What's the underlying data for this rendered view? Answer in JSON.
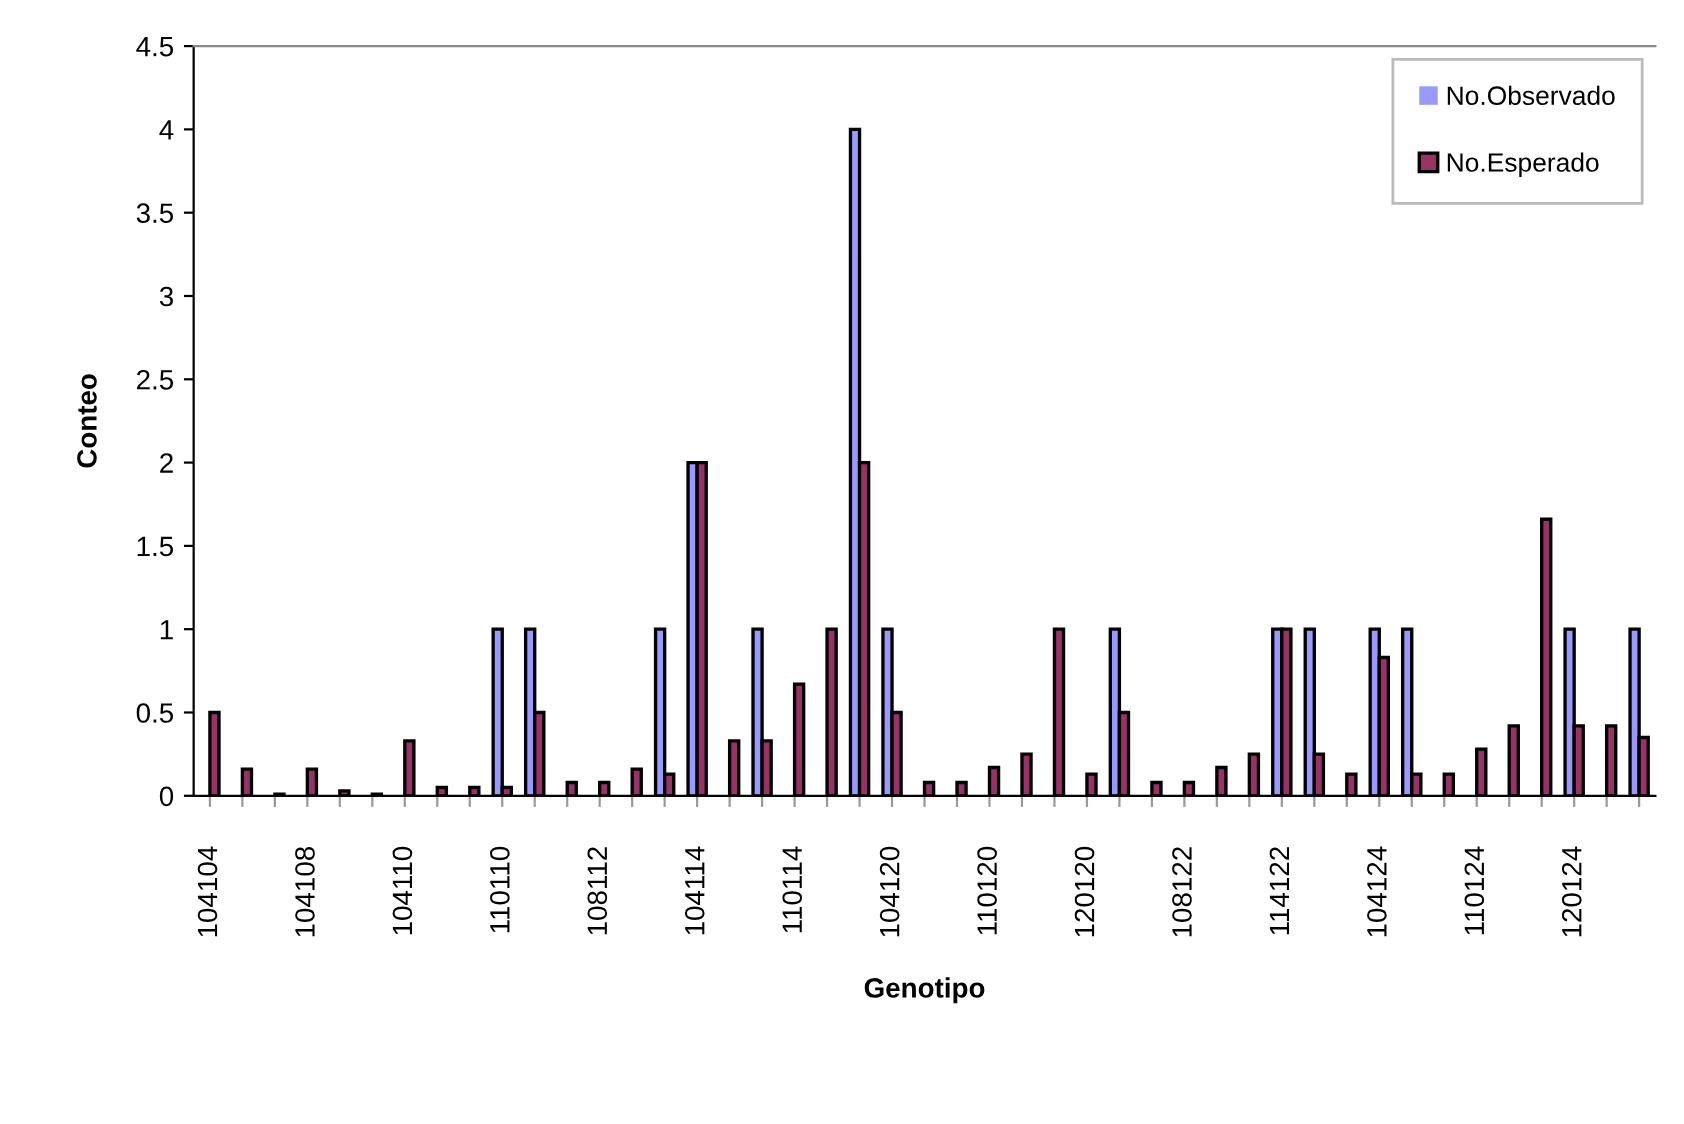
{
  "chart_data": {
    "type": "bar",
    "xlabel": "Genotipo",
    "ylabel": "Conteo",
    "categories": [
      "104104",
      null,
      null,
      "104108",
      null,
      null,
      "104110",
      null,
      null,
      "110110",
      null,
      null,
      "108112",
      null,
      null,
      "104114",
      null,
      null,
      "110114",
      null,
      null,
      "104120",
      null,
      null,
      "110120",
      null,
      null,
      "120120",
      null,
      null,
      "108122",
      null,
      null,
      "114122",
      null,
      null,
      "104124",
      null,
      null,
      "110124",
      null,
      null,
      "120124",
      null,
      null
    ],
    "series": [
      {
        "name": "No.Observado",
        "color": "#9999ff",
        "values": [
          0,
          0,
          0,
          0,
          0,
          0,
          0,
          0,
          0,
          1,
          1,
          0,
          0,
          0,
          1,
          2,
          0,
          1,
          0,
          0,
          4,
          1,
          0,
          0,
          0,
          0,
          0,
          0,
          1,
          0,
          0,
          0,
          0,
          1,
          1,
          0,
          1,
          1,
          0,
          0,
          0,
          0,
          1,
          0,
          1
        ]
      },
      {
        "name": "No.Esperado",
        "color": "#993366",
        "values": [
          0.5,
          0.16,
          0.01,
          0.16,
          0.03,
          0.01,
          0.33,
          0.05,
          0.05,
          0.05,
          0.5,
          0.08,
          0.08,
          0.16,
          0.13,
          2,
          0.33,
          0.33,
          0.67,
          1,
          2,
          0.5,
          0.08,
          0.08,
          0.17,
          0.25,
          1,
          0.13,
          0.5,
          0.08,
          0.08,
          0.17,
          0.25,
          1,
          0.25,
          0.13,
          0.83,
          0.13,
          0.13,
          0.28,
          0.42,
          1.66,
          0.42,
          0.42,
          0.35
        ]
      }
    ],
    "ylim": [
      0,
      4.5
    ],
    "yticks": [
      0,
      0.5,
      1,
      1.5,
      2,
      2.5,
      3,
      3.5,
      4,
      4.5
    ],
    "grid": false,
    "legend": "top right"
  }
}
